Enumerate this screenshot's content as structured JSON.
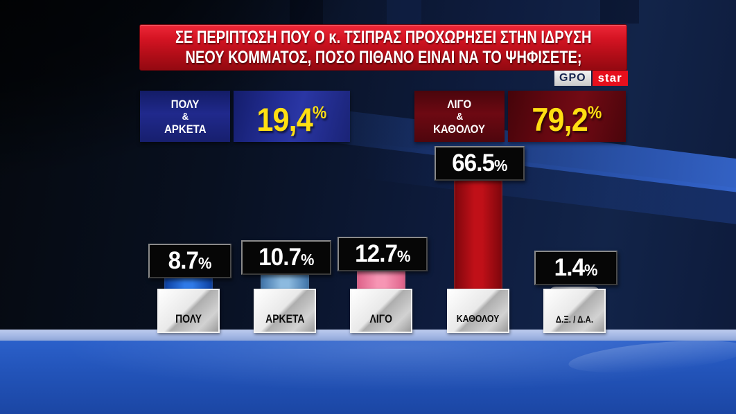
{
  "banner": {
    "line1": "ΣΕ ΠΕΡΙΠΤΩΣΗ ΠΟΥ Ο κ. ΤΣΙΠΡΑΣ ΠΡΟΧΩΡΗΣΕΙ ΣΤΗΝ ΙΔΡΥΣΗ",
    "line2": "ΝΕΟΥ ΚΟΜΜΑΤΟΣ, ΠΟΣΟ ΠΙΘΑΝΟ ΕΙΝΑΙ ΝΑ ΤΟ ΨΗΦΙΣΕΤΕ;"
  },
  "logo": {
    "gpo": "GPO",
    "star": "star"
  },
  "summary": {
    "positive": {
      "lines": [
        "ΠΟΛΥ",
        "&",
        "ΑΡΚΕΤΑ"
      ],
      "value": "19,4",
      "suffix": "%"
    },
    "negative": {
      "lines": [
        "ΛΙΓΟ",
        "&",
        "ΚΑΘΟΛΟΥ"
      ],
      "value": "79,2",
      "suffix": "%"
    }
  },
  "colors": {
    "banner_red": "#c01020",
    "summary_blue": "#232e96",
    "summary_dark_red": "#670811",
    "value_yellow": "#ffdf12",
    "floor_blue": "#2253b8",
    "platform_light": "#a3b7e4"
  },
  "chart_data": {
    "type": "bar",
    "title": "ΣΕ ΠΕΡΙΠΤΩΣΗ ΠΟΥ Ο κ. ΤΣΙΠΡΑΣ ΠΡΟΧΩΡΗΣΕΙ ΣΤΗΝ ΙΔΡΥΣΗ ΝΕΟΥ ΚΟΜΜΑΤΟΣ, ΠΟΣΟ ΠΙΘΑΝΟ ΕΙΝΑΙ ΝΑ ΤΟ ΨΗΦΙΣΕΤΕ;",
    "categories": [
      "ΠΟΛΥ",
      "ΑΡΚΕΤΑ",
      "ΛΙΓΟ",
      "ΚΑΘΟΛΟΥ",
      "Δ.Ξ. / Δ.Α."
    ],
    "values": [
      8.7,
      10.7,
      12.7,
      66.5,
      1.4
    ],
    "xlabel": "",
    "ylabel": "",
    "ylim": [
      0,
      70
    ],
    "grid": false,
    "legend": false,
    "bars": [
      {
        "category": "ΠΟΛΥ",
        "value": 8.7,
        "display": "8.7",
        "suffix": "%",
        "color_center": "#2f7ae8",
        "color_edge": "#0b3e9e"
      },
      {
        "category": "ΑΡΚΕΤΑ",
        "value": 10.7,
        "display": "10.7",
        "suffix": "%",
        "color_center": "#8cbadf",
        "color_edge": "#3e72a8"
      },
      {
        "category": "ΛΙΓΟ",
        "value": 12.7,
        "display": "12.7",
        "suffix": "%",
        "color_center": "#f795b4",
        "color_edge": "#dd6088"
      },
      {
        "category": "ΚΑΘΟΛΟΥ",
        "value": 66.5,
        "display": "66.5",
        "suffix": "%",
        "color_center": "#c01018",
        "color_edge": "#7c060c"
      },
      {
        "category": "Δ.Ξ. / Δ.Α.",
        "value": 1.4,
        "display": "1.4",
        "suffix": "%",
        "color_center": "#c9cdd6",
        "color_edge": "#8a90a0"
      }
    ],
    "aggregates": [
      {
        "label": "ΠΟΛΥ & ΑΡΚΕΤΑ",
        "value": 19.4,
        "display": "19,4%"
      },
      {
        "label": "ΛΙΓΟ & ΚΑΘΟΛΟΥ",
        "value": 79.2,
        "display": "79,2%"
      }
    ]
  }
}
